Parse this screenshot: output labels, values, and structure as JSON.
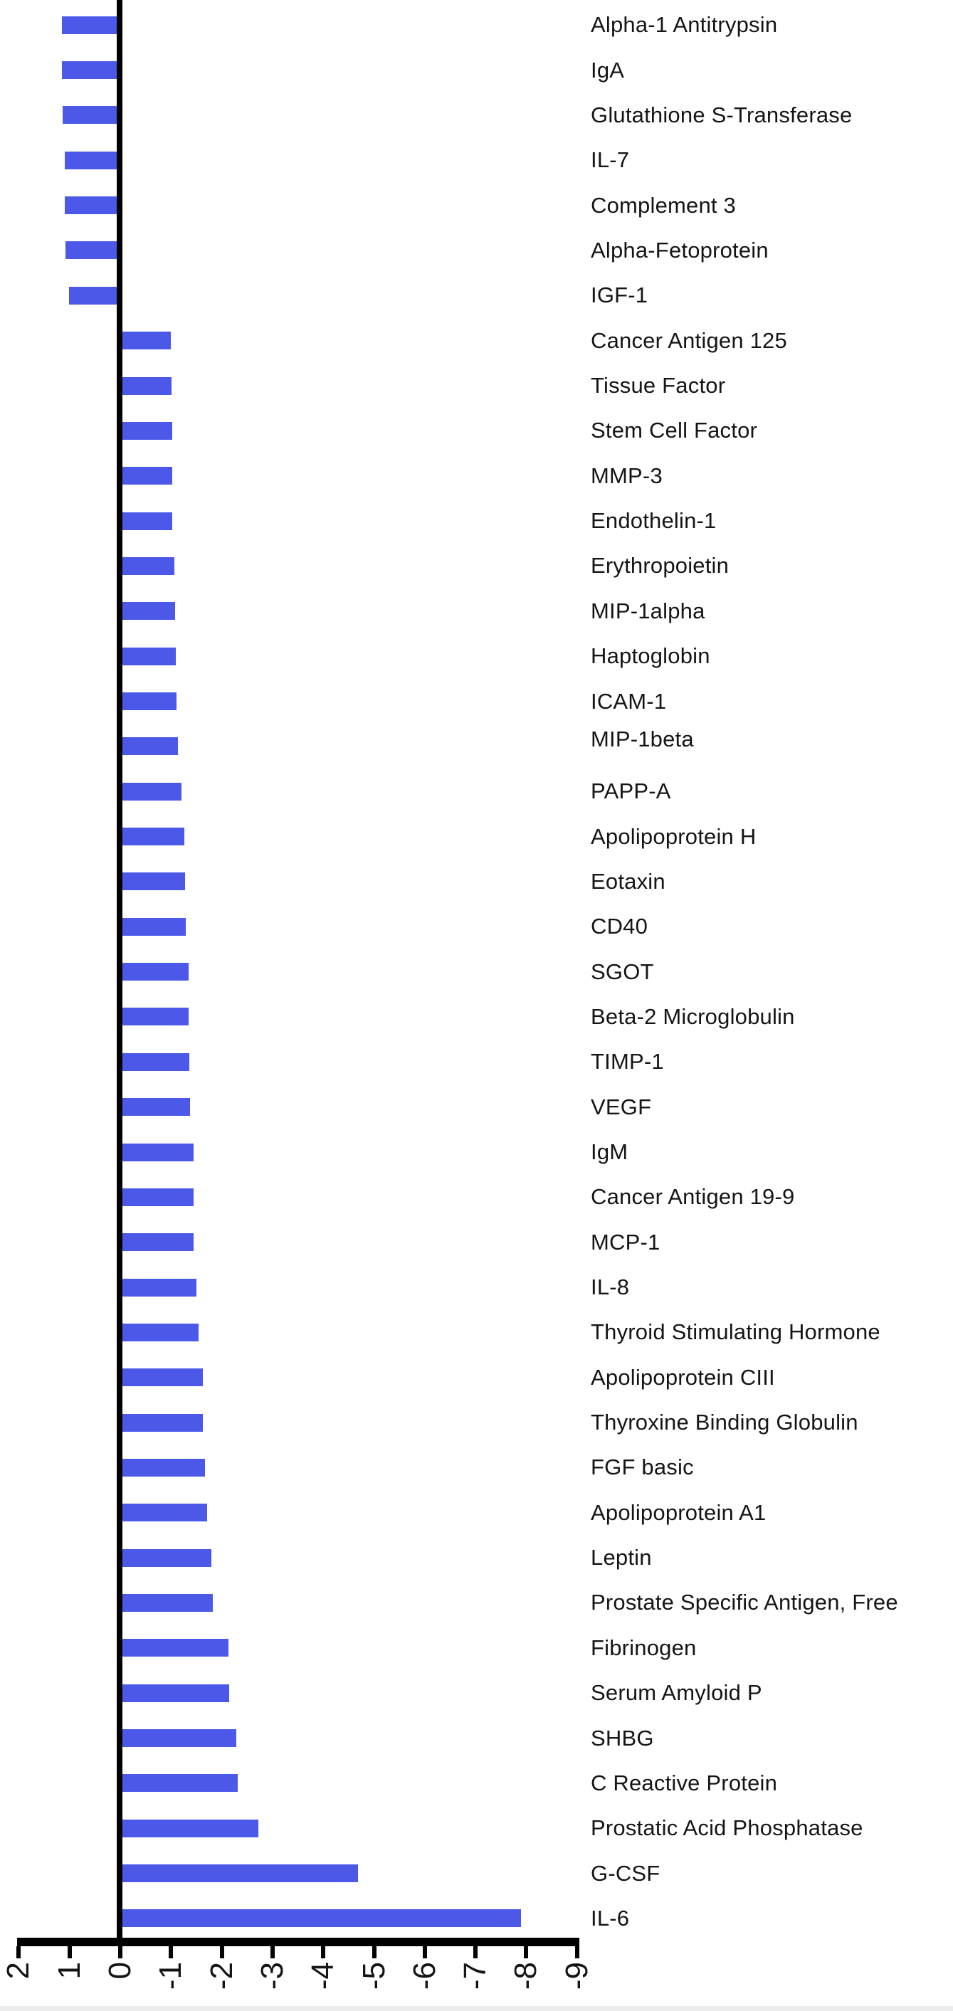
{
  "chart_data": {
    "type": "bar",
    "orientation": "horizontal",
    "title": "",
    "xlabel": "",
    "ylabel": "",
    "categories": [
      "Alpha-1 Antitrypsin",
      "IgA",
      "Glutathione S-Transferase",
      "IL-7",
      "Complement 3",
      "Alpha-Fetoprotein",
      "IGF-1",
      "Cancer Antigen 125",
      "Tissue Factor",
      "Stem Cell Factor",
      "MMP-3",
      "Endothelin-1",
      "Erythropoietin",
      "MIP-1alpha",
      "Haptoglobin",
      "ICAM-1",
      "MIP-1beta",
      "PAPP-A",
      "Apolipoprotein H",
      "Eotaxin",
      "CD40",
      "SGOT",
      "Beta-2 Microglobulin",
      "TIMP-1",
      "VEGF",
      "IgM",
      "Cancer Antigen 19-9",
      "MCP-1",
      "IL-8",
      "Thyroid Stimulating Hormone",
      "Apolipoprotein CIII",
      "Thyroxine Binding Globulin",
      "FGF basic",
      "Apolipoprotein A1",
      "Leptin",
      "Prostate Specific Antigen, Free",
      "Fibrinogen",
      "Serum Amyloid P",
      "SHBG",
      "C Reactive Protein",
      "Prostatic Acid Phosphatase",
      "G-CSF",
      "IL-6"
    ],
    "values": [
      1.15,
      1.15,
      1.14,
      1.1,
      1.1,
      1.08,
      1.01,
      -1.0,
      -1.01,
      -1.02,
      -1.02,
      -1.03,
      -1.07,
      -1.08,
      -1.09,
      -1.11,
      -1.14,
      -1.21,
      -1.26,
      -1.28,
      -1.29,
      -1.34,
      -1.35,
      -1.36,
      -1.38,
      -1.45,
      -1.45,
      -1.45,
      -1.5,
      -1.54,
      -1.62,
      -1.62,
      -1.67,
      -1.71,
      -1.79,
      -1.82,
      -2.13,
      -2.15,
      -2.28,
      -2.32,
      -2.72,
      -4.69,
      -7.9
    ],
    "x_tick_labels": [
      "2",
      "1",
      "0",
      "-1",
      "-2",
      "-3",
      "-4",
      "-5",
      "-6",
      "-7",
      "-8",
      "-9"
    ],
    "x_tick_values": [
      2,
      1,
      0,
      -1,
      -2,
      -3,
      -4,
      -5,
      -6,
      -7,
      -8,
      -9
    ],
    "xlim": [
      2,
      -9
    ],
    "x_axis_reversed": true,
    "grid": false,
    "legend": false,
    "bar_color": "#4b58e8",
    "axis_color": "#000000",
    "text_color": "#151515",
    "label_vertical_nudge": {
      "MIP-1beta": -10
    }
  }
}
